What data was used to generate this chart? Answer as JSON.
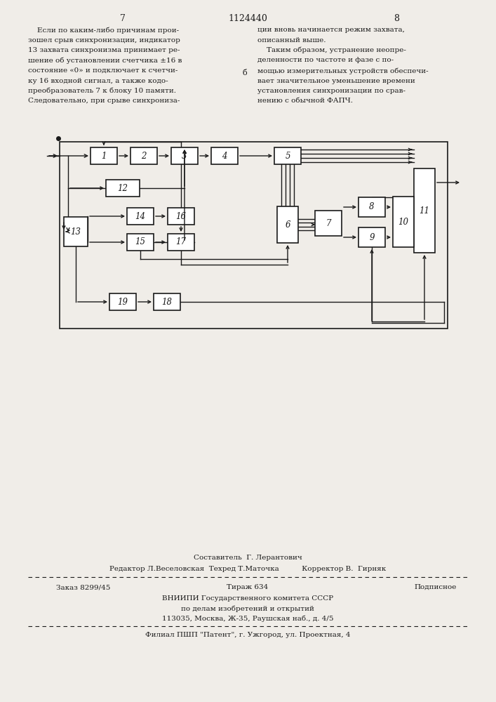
{
  "page_width": 7.07,
  "page_height": 10.0,
  "bg_color": "#f0ede8",
  "text_color": "#1a1a1a",
  "page_num_left": "7",
  "page_num_center": "1124440",
  "page_num_right": "8",
  "left_text_lines": [
    "    Если по каким-либо причинам прои-",
    "зошел срыв синхронизации, индикатор",
    "13 захвата синхронизма принимает ре-",
    "шение об установлении счетчика ±16 в",
    "состояние «0» и подключает к счетчи-",
    "ку 16 входной сигнал, а также кодо-",
    "преобразователь 7 к блоку 10 памяти.",
    "Следовательно, при срыве синхрониза-"
  ],
  "right_text_lines": [
    "ции вновь начинается режим захвата,",
    "описанный выше.",
    "    Таким образом, устранение неопре-",
    "деленности по частоте и фазе с по-",
    "мощью измерительных устройств обеспечи-",
    "вает значительное уменьшение времени",
    "установления синхронизации по срав-",
    "нению с обычной ФАПЧ."
  ],
  "footer_lines": [
    "Составитель  Г. Лерантович",
    "Редактор Л.Веселовская  Техред Т.Маточка          Корректор В.  Гирняк",
    "Заказ 8299/45        Тираж 634              Подписное",
    "ВНИИПИ Государственного комитета СССР",
    "по делам изобретений и открытий",
    "113035, Москва, Ж-35, Раушская наб., д. 4/5",
    "Филиал ПШП \"Патент\", г. Ужгород, ул. Проектная, 4"
  ]
}
